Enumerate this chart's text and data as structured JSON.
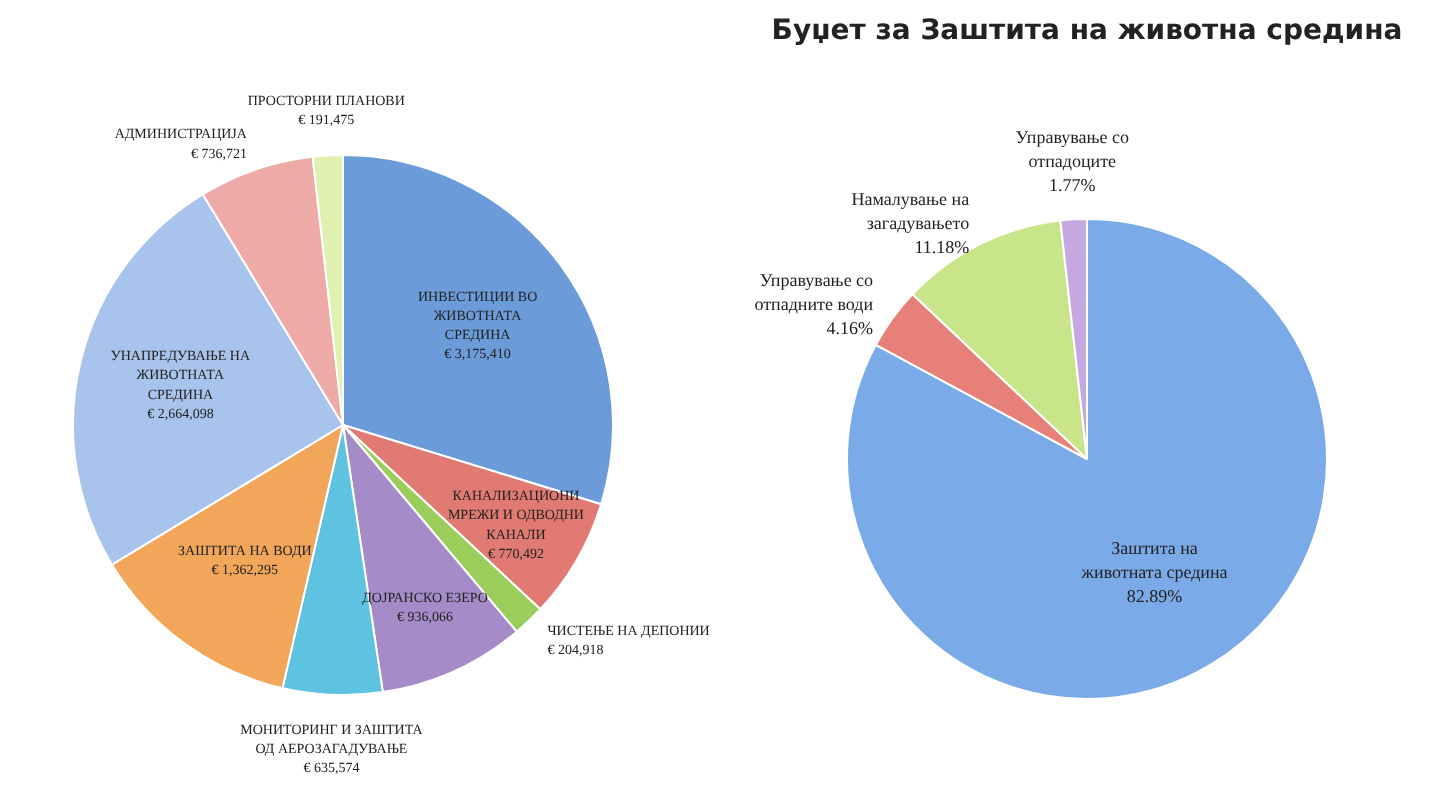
{
  "chart_data": [
    {
      "type": "pie",
      "categories": [
        "ИНВЕСТИЦИИ ВО ЖИВОТНАТА СРЕДИНА",
        "КАНАЛИЗАЦИОНИ МРЕЖИ И ОДВОДНИ КАНАЛИ",
        "ЧИСТЕЊЕ НА ДЕПОНИИ",
        "ДОЈРАНСКО ЕЗЕРО",
        "МОНИТОРИНГ И ЗАШТИТА ОД АЕРОЗАГАДУВАЊЕ",
        "ЗАШТИТА НА ВОДИ",
        "УНАПРЕДУВАЊЕ НА ЖИВОТНАТА СРЕДИНА",
        "АДМИНИСТРАЦИЈА",
        "ПРОСТОРНИ ПЛАНОВИ"
      ],
      "values": [
        3175410,
        770492,
        204918,
        936066,
        635574,
        1362295,
        2664098,
        736721,
        191475
      ],
      "colors": [
        "#6b9bd8",
        "#e07a72",
        "#9acd5a",
        "#a58cc8",
        "#5ec3e0",
        "#f2a65a",
        "#a9c4ec",
        "#eeaaa6",
        "#dff0b0"
      ],
      "value_labels": [
        "€ 3,175,410",
        "€ 770,492",
        "€ 204,918",
        "€ 936,066",
        "€ 635,574",
        "€ 1,362,295",
        "€ 2,664,098",
        "€ 736,721",
        "€ 191,475"
      ]
    },
    {
      "type": "pie",
      "title": "Буџет за Заштита на животна средина",
      "categories": [
        "Заштита на животната средина",
        "Управување со отпадните води",
        "Намалување на загадувањето",
        "Управување со отпадоците"
      ],
      "values": [
        82.89,
        4.16,
        11.18,
        1.77
      ],
      "colors": [
        "#7aaae8",
        "#e8807a",
        "#c9e58a",
        "#c5a8e0"
      ],
      "value_labels": [
        "82.89%",
        "4.16%",
        "11.18%",
        "1.77%"
      ]
    }
  ]
}
